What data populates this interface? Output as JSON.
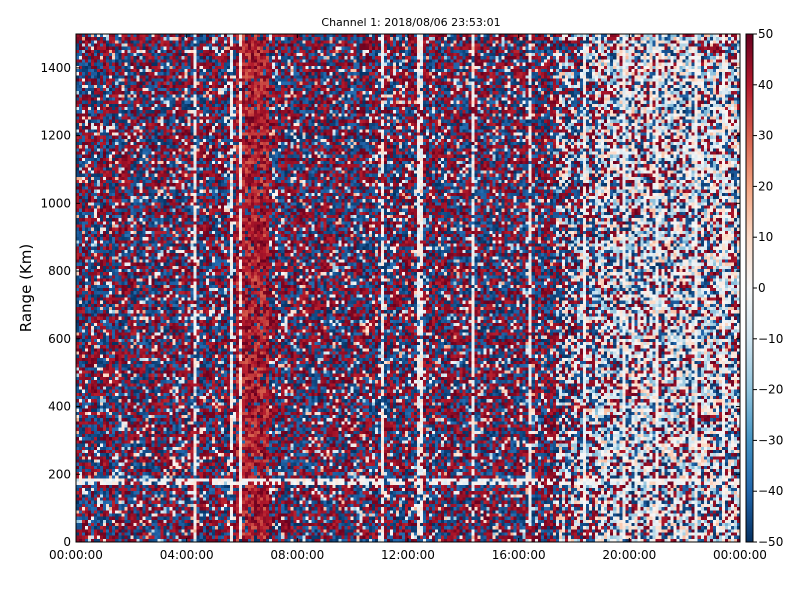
{
  "chart_data": {
    "type": "heatmap",
    "title": "Channel 1: 2018/08/06 23:53:01",
    "xlabel": "",
    "ylabel": "Range (Km)",
    "x_ticks": [
      "00:00:00",
      "04:00:00",
      "08:00:00",
      "12:00:00",
      "16:00:00",
      "20:00:00",
      "00:00:00"
    ],
    "y_ticks": [
      "0",
      "200",
      "400",
      "600",
      "800",
      "1000",
      "1200",
      "1400"
    ],
    "xlim_hours": [
      0,
      24
    ],
    "ylim": [
      0,
      1500
    ],
    "colorbar": {
      "colormap": "RdBu_r",
      "range": [
        -50,
        50
      ],
      "ticks": [
        "50",
        "40",
        "30",
        "20",
        "10",
        "0",
        "−10",
        "−20",
        "−30",
        "−40",
        "−50"
      ],
      "colors": [
        "#053061",
        "#2166ac",
        "#4393c3",
        "#92c5de",
        "#d1e5f0",
        "#f7f7f7",
        "#fddbc7",
        "#f4a582",
        "#d6604d",
        "#b2182b",
        "#67001f"
      ]
    }
  }
}
